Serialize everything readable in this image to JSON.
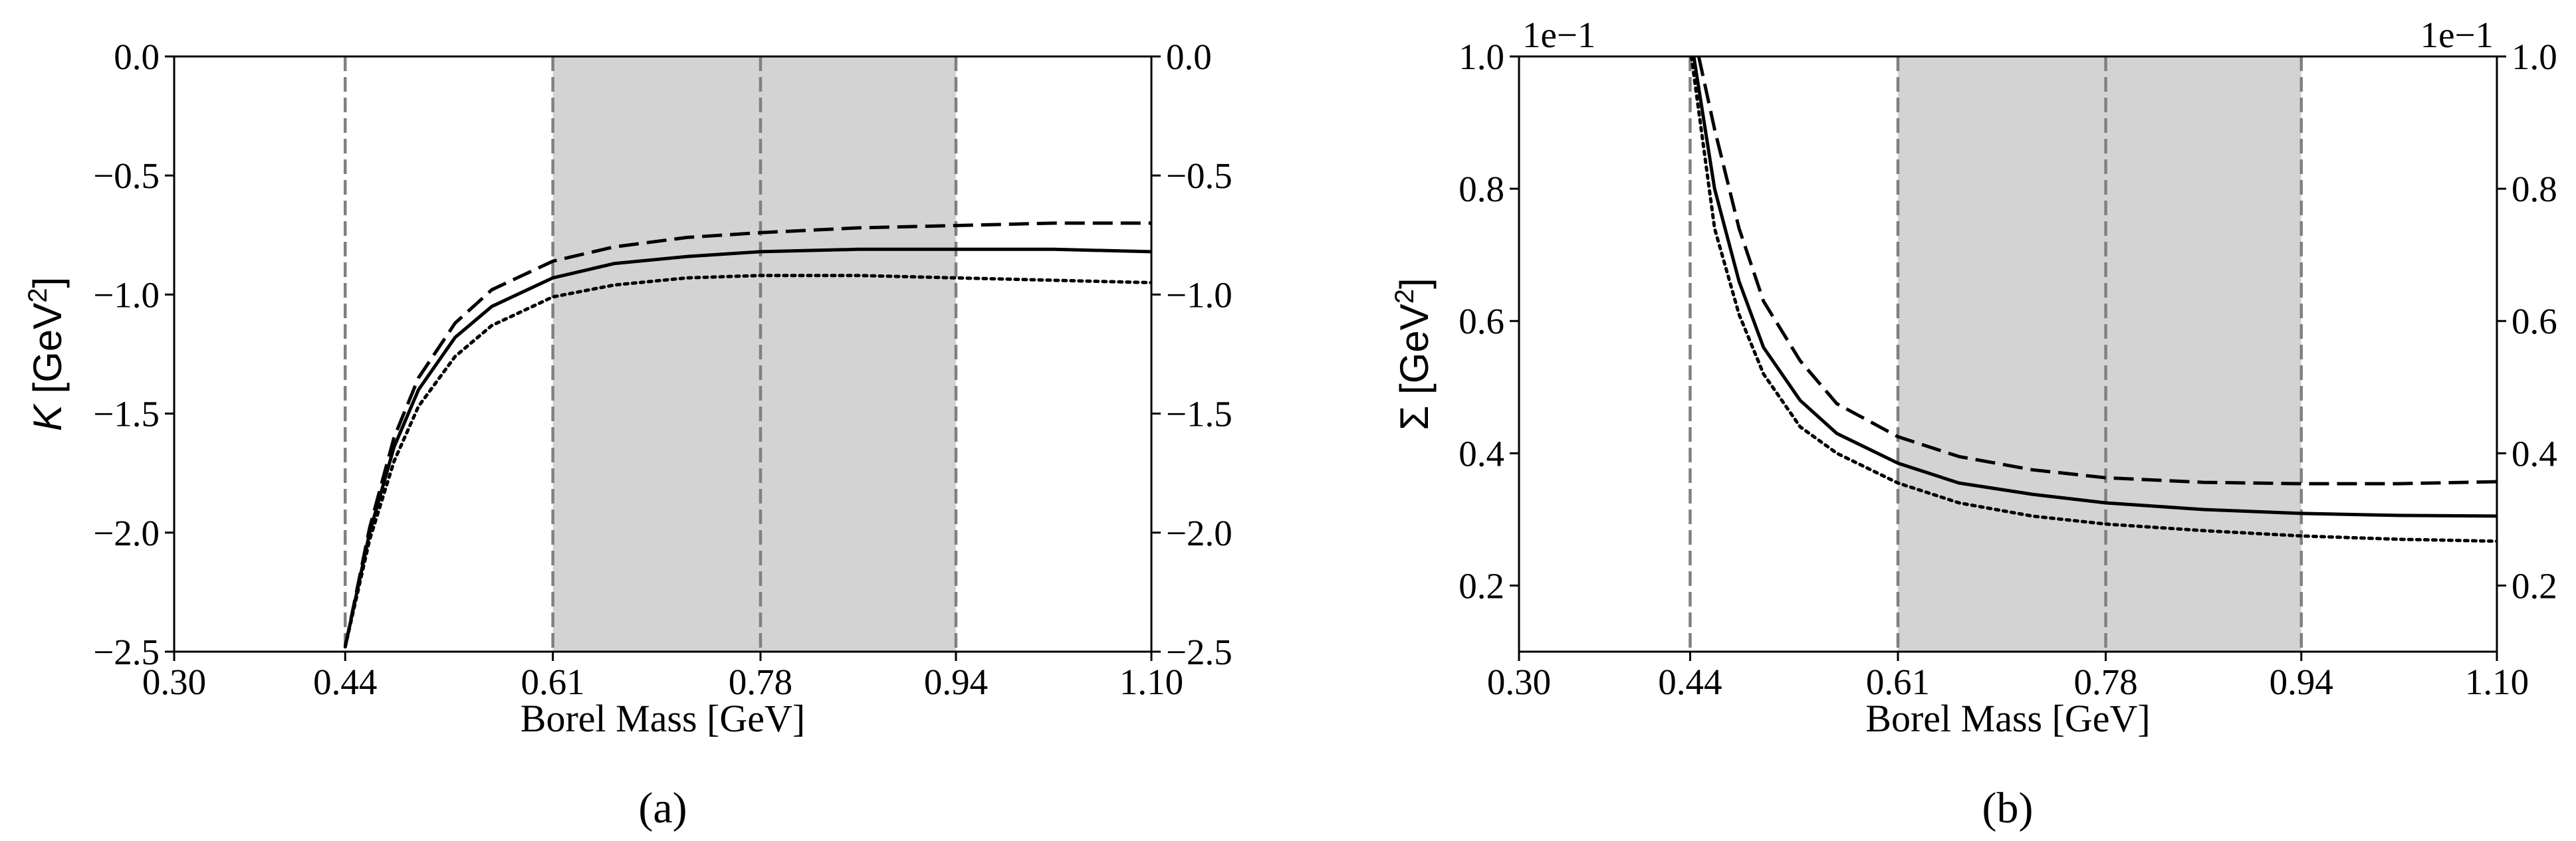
{
  "chart_data": [
    {
      "type": "line",
      "panel_label": "(a)",
      "xlabel": "Borel Mass [GeV]",
      "ylabel": {
        "symbol": "K",
        "unit_open": " [GeV",
        "unit_exp": "2",
        "unit_close": "]"
      },
      "xlim": [
        0.3,
        1.1
      ],
      "ylim": [
        -2.5,
        0.0
      ],
      "xticks": [
        0.3,
        0.44,
        0.61,
        0.78,
        0.94,
        1.1
      ],
      "xtick_labels": [
        "0.30",
        "0.44",
        "0.61",
        "0.78",
        "0.94",
        "1.10"
      ],
      "yticks": [
        -2.5,
        -2.0,
        -1.5,
        -1.0,
        -0.5,
        0.0
      ],
      "ytick_labels": [
        "−2.5",
        "−2.0",
        "−1.5",
        "−1.0",
        "−0.5",
        "0.0"
      ],
      "right_axis_duplicated": true,
      "vlines": [
        0.44,
        0.61,
        0.78,
        0.94
      ],
      "shaded_region": [
        0.61,
        0.94
      ],
      "colors": {
        "shade": "#d3d3d3",
        "vline": "#808080",
        "line": "#000000"
      },
      "series": [
        {
          "style": "dashed",
          "x": [
            0.44,
            0.46,
            0.48,
            0.5,
            0.53,
            0.56,
            0.61,
            0.66,
            0.72,
            0.78,
            0.86,
            0.94,
            1.02,
            1.1
          ],
          "y": [
            -2.48,
            -1.98,
            -1.6,
            -1.35,
            -1.12,
            -0.98,
            -0.86,
            -0.8,
            -0.76,
            -0.74,
            -0.72,
            -0.71,
            -0.7,
            -0.7
          ]
        },
        {
          "style": "solid",
          "x": [
            0.44,
            0.46,
            0.48,
            0.5,
            0.53,
            0.56,
            0.61,
            0.66,
            0.72,
            0.78,
            0.86,
            0.94,
            1.02,
            1.1
          ],
          "y": [
            -2.48,
            -2.0,
            -1.64,
            -1.4,
            -1.18,
            -1.05,
            -0.93,
            -0.87,
            -0.84,
            -0.82,
            -0.81,
            -0.81,
            -0.81,
            -0.82
          ]
        },
        {
          "style": "dotted",
          "x": [
            0.44,
            0.46,
            0.48,
            0.5,
            0.53,
            0.56,
            0.61,
            0.66,
            0.72,
            0.78,
            0.86,
            0.94,
            1.02,
            1.1
          ],
          "y": [
            -2.48,
            -2.03,
            -1.7,
            -1.47,
            -1.26,
            -1.13,
            -1.01,
            -0.96,
            -0.93,
            -0.92,
            -0.92,
            -0.93,
            -0.94,
            -0.95
          ]
        }
      ]
    },
    {
      "type": "line",
      "panel_label": "(b)",
      "xlabel": "Borel Mass [GeV]",
      "ylabel": {
        "symbol": "Σ",
        "unit_open": " [GeV",
        "unit_exp": "2",
        "unit_close": "]"
      },
      "offset_text": "1e−1",
      "xlim": [
        0.3,
        1.1
      ],
      "ylim": [
        0.1,
        1.0
      ],
      "xticks": [
        0.3,
        0.44,
        0.61,
        0.78,
        0.94,
        1.1
      ],
      "xtick_labels": [
        "0.30",
        "0.44",
        "0.61",
        "0.78",
        "0.94",
        "1.10"
      ],
      "yticks": [
        0.2,
        0.4,
        0.6,
        0.8,
        1.0
      ],
      "ytick_labels": [
        "0.2",
        "0.4",
        "0.6",
        "0.8",
        "1.0"
      ],
      "right_axis_duplicated": true,
      "vlines": [
        0.44,
        0.61,
        0.78,
        0.94
      ],
      "shaded_region": [
        0.61,
        0.94
      ],
      "colors": {
        "shade": "#d3d3d3",
        "vline": "#808080",
        "line": "#000000"
      },
      "series": [
        {
          "style": "dashed",
          "x": [
            0.447,
            0.46,
            0.48,
            0.5,
            0.53,
            0.56,
            0.61,
            0.66,
            0.72,
            0.78,
            0.86,
            0.94,
            1.02,
            1.1
          ],
          "y": [
            1.0,
            0.89,
            0.74,
            0.63,
            0.54,
            0.475,
            0.425,
            0.395,
            0.375,
            0.363,
            0.356,
            0.354,
            0.354,
            0.357
          ]
        },
        {
          "style": "solid",
          "x": [
            0.443,
            0.46,
            0.48,
            0.5,
            0.53,
            0.56,
            0.61,
            0.66,
            0.72,
            0.78,
            0.86,
            0.94,
            1.02,
            1.1
          ],
          "y": [
            1.0,
            0.8,
            0.66,
            0.56,
            0.48,
            0.43,
            0.385,
            0.355,
            0.338,
            0.325,
            0.315,
            0.309,
            0.306,
            0.305
          ]
        },
        {
          "style": "dotted",
          "x": [
            0.441,
            0.46,
            0.48,
            0.5,
            0.53,
            0.56,
            0.61,
            0.66,
            0.72,
            0.78,
            0.86,
            0.94,
            1.02,
            1.1
          ],
          "y": [
            1.0,
            0.74,
            0.61,
            0.52,
            0.44,
            0.4,
            0.355,
            0.325,
            0.305,
            0.293,
            0.283,
            0.275,
            0.27,
            0.267
          ]
        }
      ]
    }
  ]
}
